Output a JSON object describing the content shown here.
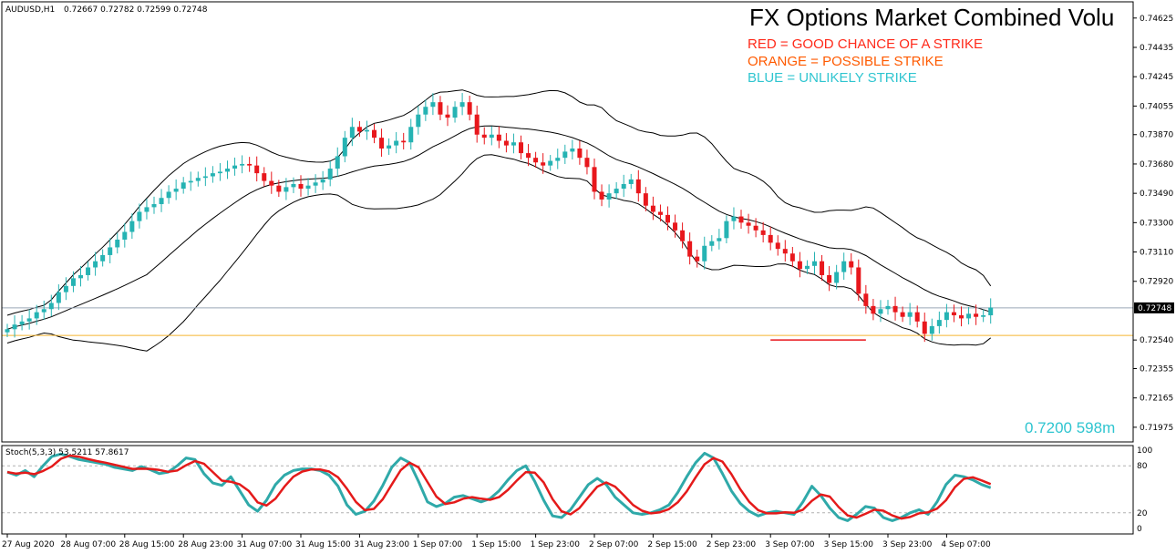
{
  "header": {
    "symbol_label": "AUDUSD,H1",
    "ohlc_label": "0.72667 0.72782 0.72599 0.72748"
  },
  "title": "FX Options Market Combined Volu",
  "legend": [
    {
      "text": "RED = GOOD CHANCE OF A STRIKE",
      "color": "#ff2a1a"
    },
    {
      "text": "ORANGE = POSSIBLE STRIKE",
      "color": "#ff5a00"
    },
    {
      "text": "BLUE = UNLIKELY STRIKE",
      "color": "#2fc5d0"
    }
  ],
  "annotation": {
    "text": "0.7200 598m",
    "color": "#2fc5d0"
  },
  "colors": {
    "bull": "#26b3b3",
    "bear": "#e8171c",
    "band": "#000000",
    "orange_line": "#f5b431",
    "stoch_main": "#2fa9a9",
    "stoch_signal": "#e41a1a"
  },
  "chart_data": [
    {
      "type": "candlestick",
      "price_axis": {
        "ticks": [
          "0.74625",
          "0.74435",
          "0.74245",
          "0.74055",
          "0.73870",
          "0.73680",
          "0.73490",
          "0.73300",
          "0.73110",
          "0.72920",
          "0.72540",
          "0.72355",
          "0.72165",
          "0.71975"
        ],
        "ylim": [
          0.7188,
          0.7473
        ]
      },
      "current_price": "0.72748",
      "horizontal_lines": [
        {
          "value": 0.7257,
          "color": "#f5b431"
        }
      ],
      "strike_marker": {
        "value": 0.7254,
        "color": "#e8171c",
        "from": 104,
        "to": 117
      },
      "time_axis": {
        "labels": [
          "27 Aug 2020",
          "28 Aug 07:00",
          "28 Aug 15:00",
          "28 Aug 23:00",
          "31 Aug 07:00",
          "31 Aug 15:00",
          "31 Aug 23:00",
          "1 Sep 07:00",
          "1 Sep 15:00",
          "1 Sep 23:00",
          "2 Sep 07:00",
          "2 Sep 15:00",
          "2 Sep 23:00",
          "3 Sep 07:00",
          "3 Sep 15:00",
          "3 Sep 23:00",
          "4 Sep 07:00"
        ],
        "label_index": [
          0,
          8,
          16,
          24,
          32,
          40,
          48,
          56,
          64,
          72,
          80,
          88,
          96,
          104,
          112,
          120,
          128
        ]
      },
      "closes": [
        0.7261,
        0.7264,
        0.7266,
        0.7268,
        0.7272,
        0.7274,
        0.7278,
        0.7285,
        0.7289,
        0.7294,
        0.7296,
        0.7301,
        0.7305,
        0.7309,
        0.7314,
        0.7319,
        0.7324,
        0.7331,
        0.7337,
        0.734,
        0.7342,
        0.7346,
        0.735,
        0.7352,
        0.7356,
        0.7357,
        0.7359,
        0.736,
        0.7362,
        0.7363,
        0.7365,
        0.7367,
        0.7368,
        0.7367,
        0.7362,
        0.7357,
        0.7354,
        0.735,
        0.7353,
        0.7355,
        0.7352,
        0.7354,
        0.7356,
        0.7358,
        0.7365,
        0.7373,
        0.7385,
        0.7392,
        0.7389,
        0.739,
        0.7385,
        0.7378,
        0.738,
        0.7383,
        0.7382,
        0.7392,
        0.74,
        0.7405,
        0.7408,
        0.74,
        0.7398,
        0.7405,
        0.7408,
        0.74,
        0.7387,
        0.7385,
        0.7387,
        0.7383,
        0.738,
        0.7382,
        0.7375,
        0.7372,
        0.7369,
        0.7367,
        0.737,
        0.7372,
        0.7376,
        0.7378,
        0.7372,
        0.7366,
        0.735,
        0.7345,
        0.7349,
        0.7352,
        0.7355,
        0.7358,
        0.7349,
        0.7341,
        0.7337,
        0.7335,
        0.733,
        0.7325,
        0.7318,
        0.7308,
        0.7305,
        0.7315,
        0.7318,
        0.732,
        0.7331,
        0.7334,
        0.733,
        0.7328,
        0.7325,
        0.7322,
        0.7317,
        0.7313,
        0.731,
        0.7305,
        0.73,
        0.7302,
        0.7305,
        0.7296,
        0.7291,
        0.7298,
        0.7305,
        0.7301,
        0.7284,
        0.7276,
        0.7271,
        0.7274,
        0.7276,
        0.7272,
        0.7269,
        0.7272,
        0.7266,
        0.7258,
        0.7263,
        0.7267,
        0.7272,
        0.727,
        0.7268,
        0.7271,
        0.7269,
        0.727,
        0.7275
      ]
    },
    {
      "type": "line",
      "indicator_label": "Stoch(5,3,3) 53.5211 57.8617",
      "y_ticks": [
        "100",
        "80",
        "20",
        "0"
      ],
      "levels": [
        80,
        20
      ],
      "ylim": [
        0,
        100
      ],
      "main": [
        72,
        68,
        74,
        66,
        80,
        92,
        95,
        92,
        88,
        86,
        84,
        82,
        78,
        76,
        74,
        79,
        75,
        70,
        72,
        80,
        90,
        88,
        70,
        58,
        55,
        66,
        48,
        30,
        22,
        36,
        56,
        68,
        74,
        76,
        76,
        74,
        68,
        54,
        30,
        18,
        22,
        35,
        55,
        78,
        90,
        84,
        60,
        34,
        28,
        32,
        40,
        42,
        38,
        34,
        38,
        48,
        62,
        74,
        80,
        60,
        36,
        16,
        14,
        24,
        40,
        56,
        64,
        56,
        40,
        30,
        20,
        18,
        20,
        24,
        30,
        46,
        66,
        84,
        96,
        90,
        70,
        48,
        32,
        22,
        16,
        20,
        22,
        20,
        18,
        34,
        54,
        42,
        26,
        14,
        10,
        18,
        28,
        26,
        14,
        10,
        14,
        20,
        24,
        18,
        34,
        56,
        68,
        66,
        62,
        56,
        52
      ]
    }
  ]
}
